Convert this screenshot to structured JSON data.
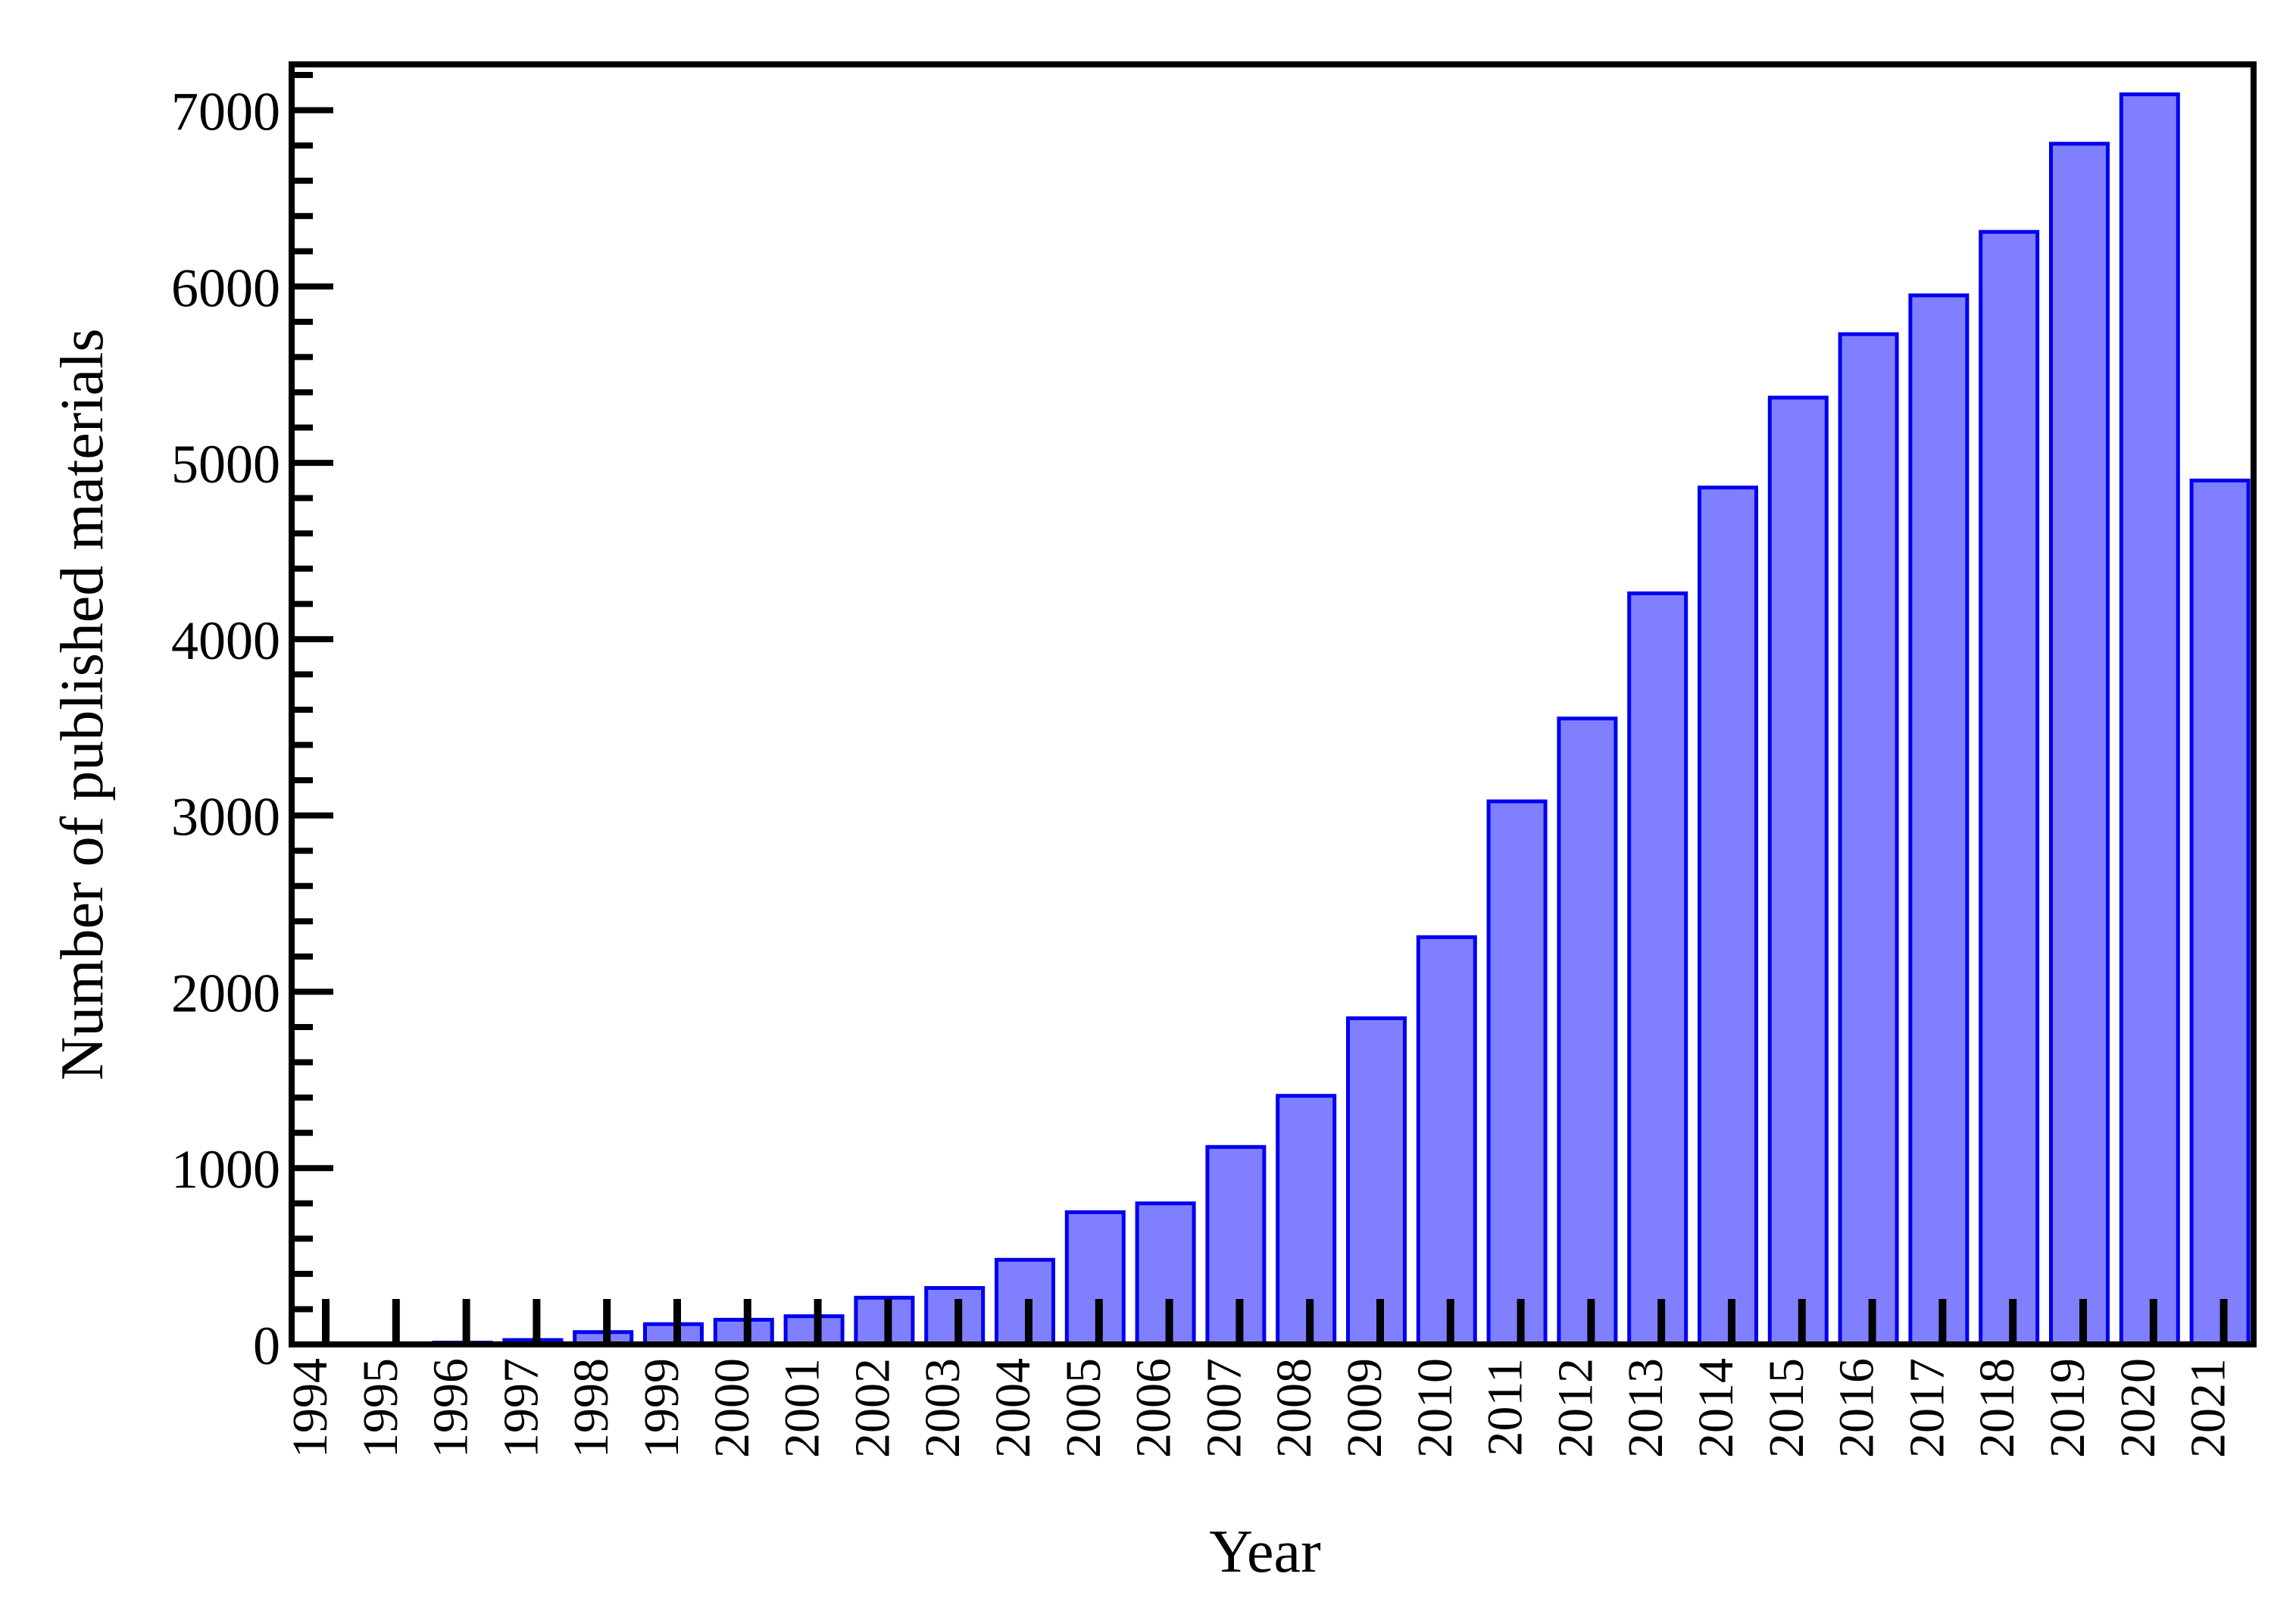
{
  "chart_data": {
    "type": "bar",
    "title": "",
    "xlabel": "Year",
    "ylabel": "Number of published materials",
    "categories": [
      "1994",
      "1995",
      "1996",
      "1997",
      "1998",
      "1999",
      "2000",
      "2001",
      "2002",
      "2003",
      "2004",
      "2005",
      "2006",
      "2007",
      "2008",
      "2009",
      "2010",
      "2011",
      "2012",
      "2013",
      "2014",
      "2015",
      "2016",
      "2017",
      "2018",
      "2019",
      "2020",
      "2021"
    ],
    "values": [
      2,
      5,
      10,
      25,
      70,
      115,
      140,
      160,
      265,
      320,
      480,
      750,
      800,
      1120,
      1410,
      1850,
      2310,
      3080,
      3550,
      4260,
      4860,
      5370,
      5730,
      5950,
      6310,
      6810,
      7090,
      4900
    ],
    "yticks": [
      0,
      1000,
      2000,
      3000,
      4000,
      5000,
      6000,
      7000
    ],
    "ylim": [
      0,
      7260
    ],
    "grid": false,
    "legend": "none",
    "colors": {
      "bar_fill": "#8080ff",
      "bar_stroke": "#0000ee",
      "axis": "#000000"
    }
  }
}
